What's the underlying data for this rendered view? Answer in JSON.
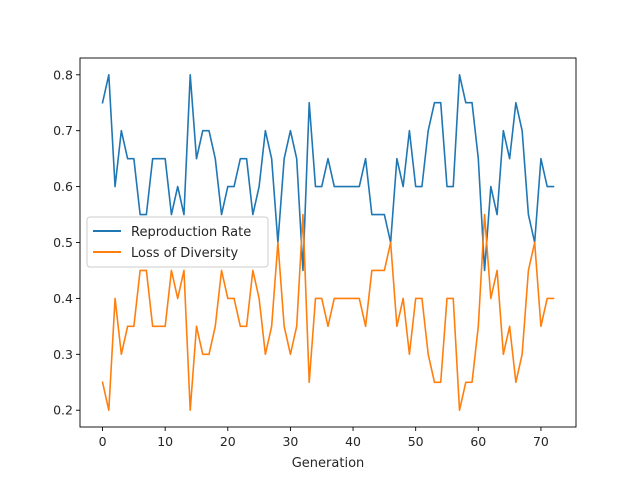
{
  "chart_data": {
    "type": "line",
    "title": "",
    "xlabel": "Generation",
    "ylabel": "",
    "xlim": [
      -3.6,
      75.6
    ],
    "ylim": [
      0.17,
      0.83
    ],
    "xticks": [
      0,
      10,
      20,
      30,
      40,
      50,
      60,
      70
    ],
    "yticks": [
      0.2,
      0.3,
      0.4,
      0.5,
      0.6,
      0.7,
      0.8
    ],
    "grid": false,
    "legend_position": "center-left",
    "x": [
      0,
      1,
      2,
      3,
      4,
      5,
      6,
      7,
      8,
      9,
      10,
      11,
      12,
      13,
      14,
      15,
      16,
      17,
      18,
      19,
      20,
      21,
      22,
      23,
      24,
      25,
      26,
      27,
      28,
      29,
      30,
      31,
      32,
      33,
      34,
      35,
      36,
      37,
      38,
      39,
      40,
      41,
      42,
      43,
      44,
      45,
      46,
      47,
      48,
      49,
      50,
      51,
      52,
      53,
      54,
      55,
      56,
      57,
      58,
      59,
      60,
      61,
      62,
      63,
      64,
      65,
      66,
      67,
      68,
      69,
      70,
      71,
      72
    ],
    "series": [
      {
        "name": "Reproduction Rate",
        "color": "#1f77b4",
        "values": [
          0.75,
          0.8,
          0.6,
          0.7,
          0.65,
          0.65,
          0.55,
          0.55,
          0.65,
          0.65,
          0.65,
          0.55,
          0.6,
          0.55,
          0.8,
          0.65,
          0.7,
          0.7,
          0.65,
          0.55,
          0.6,
          0.6,
          0.65,
          0.65,
          0.55,
          0.6,
          0.7,
          0.65,
          0.5,
          0.65,
          0.7,
          0.65,
          0.45,
          0.75,
          0.6,
          0.6,
          0.65,
          0.6,
          0.6,
          0.6,
          0.6,
          0.6,
          0.65,
          0.55,
          0.55,
          0.55,
          0.5,
          0.65,
          0.6,
          0.7,
          0.6,
          0.6,
          0.7,
          0.75,
          0.75,
          0.6,
          0.6,
          0.8,
          0.75,
          0.75,
          0.65,
          0.45,
          0.6,
          0.55,
          0.7,
          0.65,
          0.75,
          0.7,
          0.55,
          0.5,
          0.65,
          0.6,
          0.6
        ]
      },
      {
        "name": "Loss of Diversity",
        "color": "#ff7f0e",
        "values": [
          0.25,
          0.2,
          0.4,
          0.3,
          0.35,
          0.35,
          0.45,
          0.45,
          0.35,
          0.35,
          0.35,
          0.45,
          0.4,
          0.45,
          0.2,
          0.35,
          0.3,
          0.3,
          0.35,
          0.45,
          0.4,
          0.4,
          0.35,
          0.35,
          0.45,
          0.4,
          0.3,
          0.35,
          0.5,
          0.35,
          0.3,
          0.35,
          0.55,
          0.25,
          0.4,
          0.4,
          0.35,
          0.4,
          0.4,
          0.4,
          0.4,
          0.4,
          0.35,
          0.45,
          0.45,
          0.45,
          0.5,
          0.35,
          0.4,
          0.3,
          0.4,
          0.4,
          0.3,
          0.25,
          0.25,
          0.4,
          0.4,
          0.2,
          0.25,
          0.25,
          0.35,
          0.55,
          0.4,
          0.45,
          0.3,
          0.35,
          0.25,
          0.3,
          0.45,
          0.5,
          0.35,
          0.4,
          0.4
        ]
      }
    ]
  }
}
